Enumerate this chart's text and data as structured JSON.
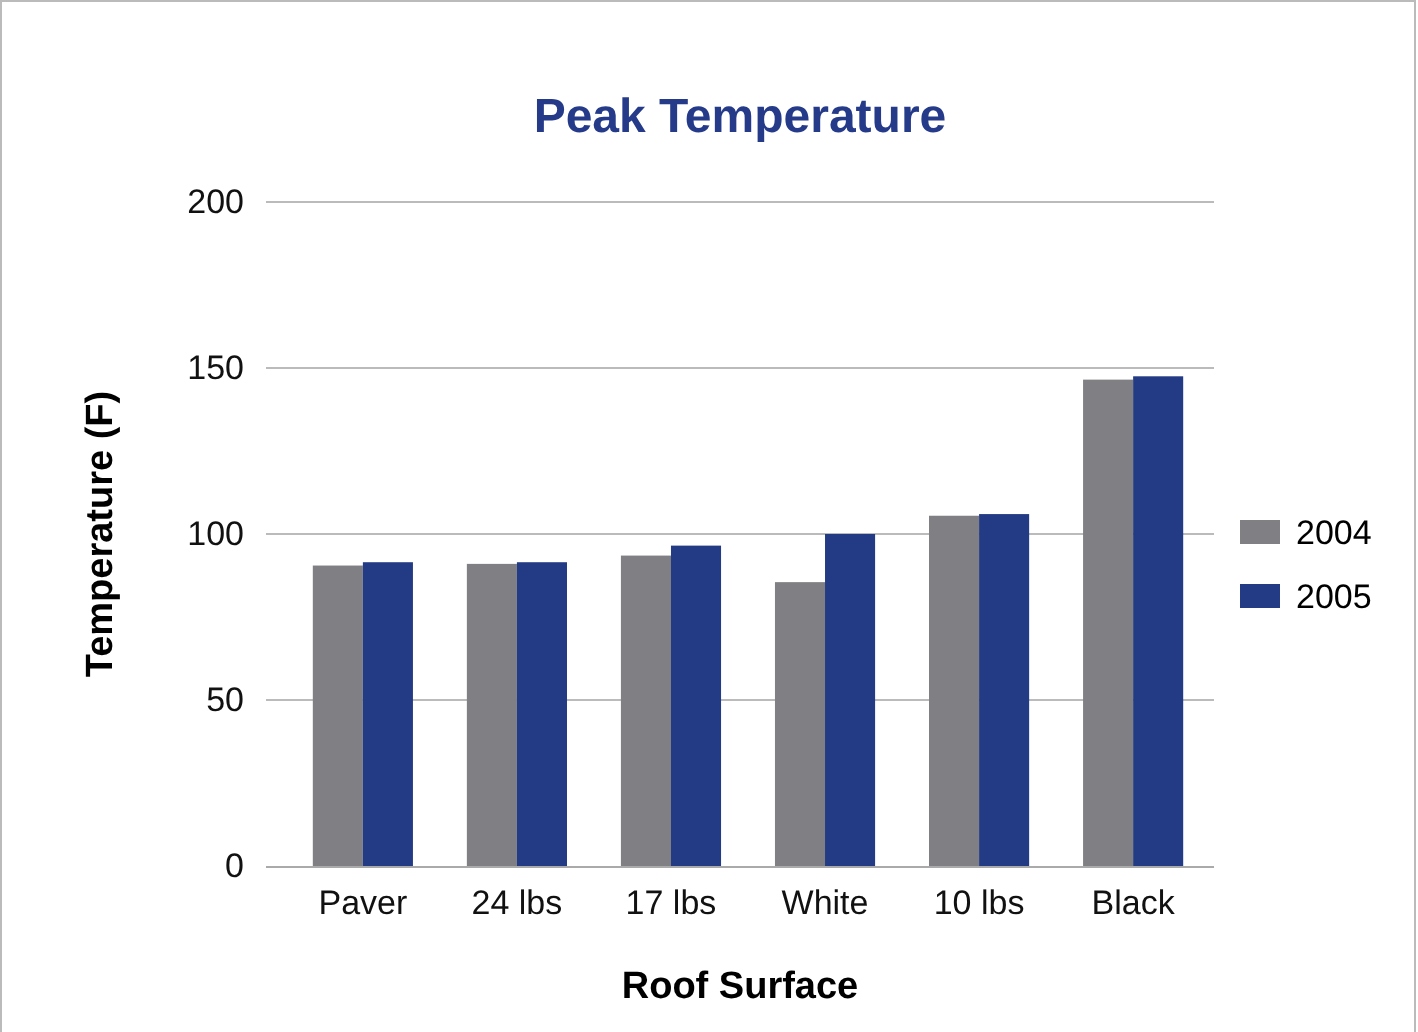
{
  "chart_data": {
    "type": "bar",
    "title": "Peak Temperature",
    "xlabel": "Roof Surface",
    "ylabel": "Temperature (F)",
    "categories": [
      "Paver",
      "24 lbs",
      "17 lbs",
      "White",
      "10 lbs",
      "Black"
    ],
    "series": [
      {
        "name": "2004",
        "color": "#808084",
        "values": [
          90.5,
          91,
          93.5,
          85.5,
          105.5,
          146.5
        ]
      },
      {
        "name": "2005",
        "color": "#233a84",
        "values": [
          91.5,
          91.5,
          96.5,
          100,
          106,
          147.5
        ]
      }
    ],
    "ylim": [
      0,
      200
    ],
    "yticks": [
      0,
      50,
      100,
      150,
      200
    ],
    "grid": "y",
    "legend": "right"
  }
}
